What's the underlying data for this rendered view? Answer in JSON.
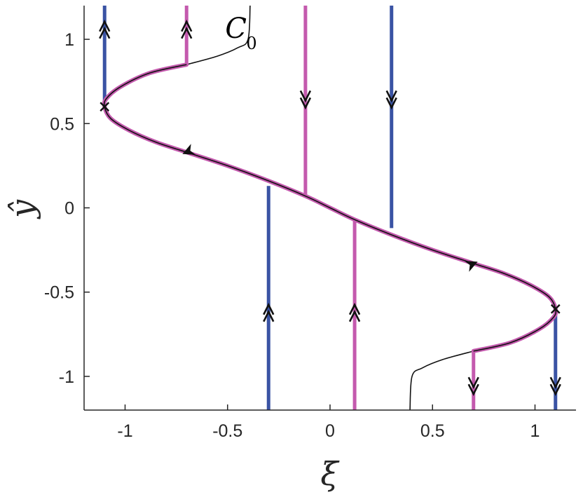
{
  "chart_data": {
    "type": "line",
    "title": "",
    "xlabel": "ξ",
    "ylabel": "ŷ",
    "xlim": [
      -1.2,
      1.2
    ],
    "ylim": [
      -1.2,
      1.2
    ],
    "xticks": [
      -1,
      -0.5,
      0,
      0.5,
      1
    ],
    "xtick_labels": [
      "-1",
      "-0.5",
      "0",
      "0.5",
      "1"
    ],
    "yticks": [
      1,
      0.5,
      0,
      -0.5,
      -1
    ],
    "ytick_labels": [
      "1",
      "0.5",
      "0",
      "-0.5",
      "-1"
    ],
    "grid": false,
    "colors": {
      "blue": "#3a53a4",
      "magenta": "#c45aae",
      "black": "#111111"
    },
    "curve_label": {
      "text": "C",
      "subscript": "0",
      "x": -0.45,
      "y": 1.1
    },
    "critical_curve": {
      "description_free": true,
      "points": [
        [
          -0.7,
          0.85
        ],
        [
          -0.88,
          0.8
        ],
        [
          -1.02,
          0.72
        ],
        [
          -1.09,
          0.65
        ],
        [
          -1.1,
          0.6
        ],
        [
          -1.07,
          0.53
        ],
        [
          -0.98,
          0.46
        ],
        [
          -0.85,
          0.39
        ],
        [
          -0.7,
          0.33
        ],
        [
          -0.5,
          0.25
        ],
        [
          -0.3,
          0.16
        ],
        [
          -0.12,
          0.07
        ],
        [
          0.0,
          0.0
        ],
        [
          0.12,
          -0.07
        ],
        [
          0.3,
          -0.16
        ],
        [
          0.5,
          -0.25
        ],
        [
          0.7,
          -0.33
        ],
        [
          0.85,
          -0.39
        ],
        [
          0.98,
          -0.46
        ],
        [
          1.07,
          -0.53
        ],
        [
          1.1,
          -0.6
        ],
        [
          1.09,
          -0.65
        ],
        [
          1.02,
          -0.72
        ],
        [
          0.88,
          -0.8
        ],
        [
          0.7,
          -0.85
        ]
      ]
    },
    "boundary_curves": [
      {
        "points": [
          [
            -0.7,
            0.85
          ],
          [
            -0.55,
            0.9
          ],
          [
            -0.45,
            0.95
          ],
          [
            -0.4,
            1.0
          ],
          [
            -0.39,
            1.2
          ]
        ]
      },
      {
        "points": [
          [
            0.7,
            -0.85
          ],
          [
            0.55,
            -0.9
          ],
          [
            0.45,
            -0.95
          ],
          [
            0.4,
            -1.0
          ],
          [
            0.39,
            -1.2
          ]
        ]
      }
    ],
    "vertical_lines": [
      {
        "color": "blue",
        "x": -1.1,
        "y0": 0.6,
        "y1": 1.2,
        "arrow_y": 1.08,
        "direction": "up"
      },
      {
        "color": "magenta",
        "x": -0.7,
        "y0": 0.85,
        "y1": 1.2,
        "arrow_y": 1.08,
        "direction": "up"
      },
      {
        "color": "magenta",
        "x": -0.12,
        "y0": 0.07,
        "y1": 1.2,
        "arrow_y": 0.62,
        "direction": "down"
      },
      {
        "color": "blue",
        "x": 0.3,
        "y0": -0.12,
        "y1": 1.2,
        "arrow_y": 0.62,
        "direction": "down"
      },
      {
        "color": "blue",
        "x": -0.3,
        "y0": 0.13,
        "y1": -1.2,
        "arrow_y": -0.6,
        "direction": "up"
      },
      {
        "color": "magenta",
        "x": 0.12,
        "y0": -0.07,
        "y1": -1.2,
        "arrow_y": -0.6,
        "direction": "up"
      },
      {
        "color": "magenta",
        "x": 0.7,
        "y0": -0.85,
        "y1": -1.2,
        "arrow_y": -1.08,
        "direction": "down"
      },
      {
        "color": "blue",
        "x": 1.1,
        "y0": -0.6,
        "y1": -1.2,
        "arrow_y": -1.08,
        "direction": "down"
      }
    ],
    "curve_arrows": [
      {
        "x": -0.7,
        "y": 0.33,
        "direction": "left"
      },
      {
        "x": 0.7,
        "y": -0.33,
        "direction": "right"
      }
    ],
    "fold_points": [
      {
        "x": -1.1,
        "y": 0.6
      },
      {
        "x": 1.1,
        "y": -0.6
      }
    ]
  }
}
